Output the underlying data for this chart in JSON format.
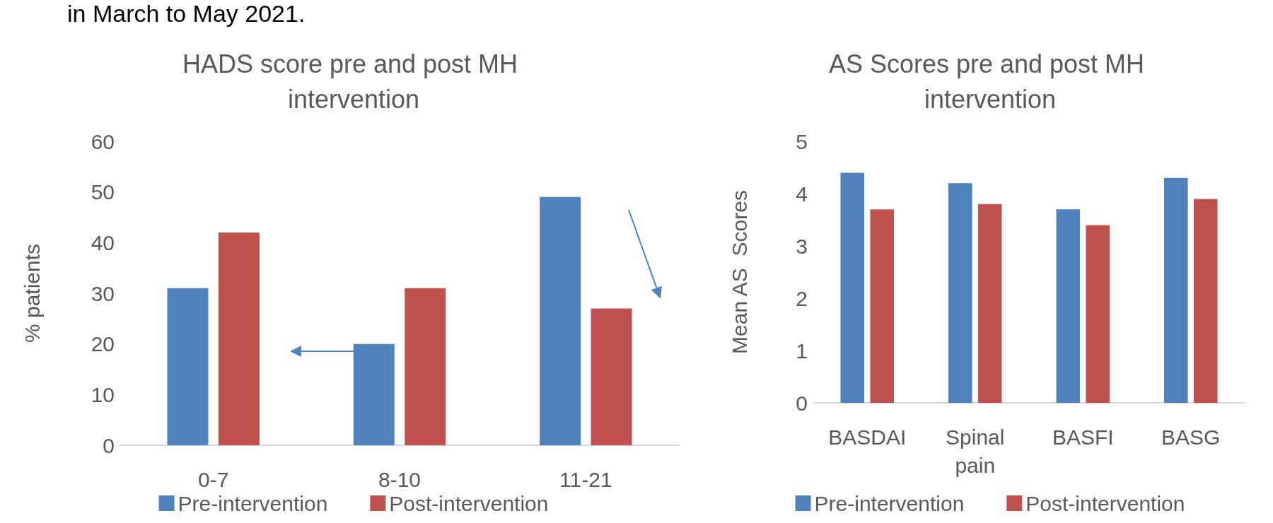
{
  "chart_data": [
    {
      "type": "bar",
      "title": "HADS score pre and post MH intervention",
      "annotations": [
        "in March to May 2021."
      ],
      "ylabel": "% patients",
      "categories": [
        "0-7",
        "8-10",
        "11-21"
      ],
      "series": [
        {
          "name": "Pre-intervention",
          "color": "#4f81bd",
          "values": [
            31,
            20,
            49
          ]
        },
        {
          "name": "Post-intervention",
          "color": "#c0504d",
          "values": [
            42,
            31,
            27
          ]
        }
      ],
      "ylim": [
        0,
        60
      ],
      "yticks": [
        0,
        10,
        20,
        30,
        40,
        50,
        60
      ],
      "grid": false,
      "legend": "bottom"
    },
    {
      "type": "bar",
      "title": "AS Scores pre and post MH intervention",
      "ylabel": "Mean AS  Scores",
      "categories": [
        "BASDAI",
        "Spinal\npain",
        "BASFI",
        "BASG"
      ],
      "series": [
        {
          "name": "Pre-intervention",
          "color": "#4f81bd",
          "values": [
            4.4,
            4.2,
            3.7,
            4.3
          ]
        },
        {
          "name": "Post-intervention",
          "color": "#c0504d",
          "values": [
            3.7,
            3.8,
            3.4,
            3.9
          ]
        }
      ],
      "ylim": [
        0,
        5
      ],
      "yticks": [
        0,
        1,
        2,
        3,
        4,
        5
      ],
      "grid": false,
      "legend": "bottom"
    }
  ]
}
